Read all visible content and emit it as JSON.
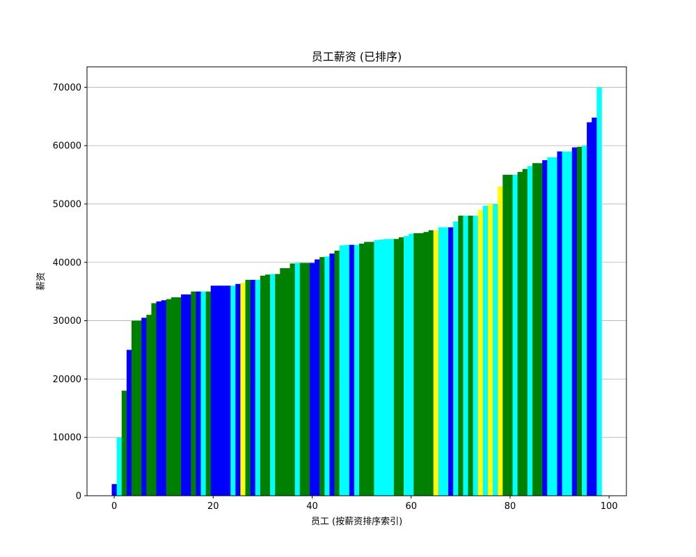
{
  "chart_data": {
    "type": "bar",
    "title": "员工薪资 (已排序)",
    "xlabel": "员工 (按薪资排序索引)",
    "ylabel": "薪资",
    "xlim": [
      -5.5,
      103.5
    ],
    "ylim": [
      0,
      73500
    ],
    "x_ticks": [
      0,
      20,
      40,
      60,
      80,
      100
    ],
    "y_ticks": [
      0,
      10000,
      20000,
      30000,
      40000,
      50000,
      60000,
      70000
    ],
    "grid": "y",
    "colors": {
      "blue": "#0000ff",
      "green": "#008000",
      "cyan": "#00ffff",
      "yellow": "#ffff00"
    },
    "series": [
      {
        "values": [
          2000,
          10000,
          18000,
          25000,
          30000,
          30000,
          30500,
          31000,
          33000,
          33300,
          33500,
          33700,
          34000,
          34000,
          34500,
          34500,
          35000,
          35000,
          35000,
          35000,
          36000,
          36000,
          36000,
          36000,
          36000,
          36300,
          36500,
          37000,
          37000,
          37000,
          37700,
          37900,
          38000,
          38000,
          39000,
          39000,
          39800,
          39900,
          39900,
          39900,
          39900,
          40500,
          40900,
          41000,
          41500,
          42000,
          42900,
          43000,
          43000,
          43000,
          43200,
          43500,
          43500,
          43800,
          43900,
          44000,
          44000,
          44000,
          44300,
          44500,
          44900,
          45000,
          45000,
          45200,
          45500,
          45500,
          46000,
          46000,
          46000,
          47000,
          48000,
          48000,
          48000,
          48000,
          49000,
          49700,
          50000,
          50000,
          53000,
          55000,
          55000,
          55000,
          55500,
          56000,
          56500,
          57000,
          57000,
          57500,
          58000,
          58000,
          59000,
          59000,
          59000,
          59700,
          59800,
          60000,
          64000,
          64800,
          70000
        ],
        "colors": [
          "blue",
          "cyan",
          "green",
          "blue",
          "green",
          "green",
          "blue",
          "green",
          "green",
          "blue",
          "blue",
          "green",
          "green",
          "green",
          "blue",
          "blue",
          "green",
          "blue",
          "cyan",
          "green",
          "blue",
          "blue",
          "blue",
          "blue",
          "cyan",
          "blue",
          "yellow",
          "green",
          "blue",
          "cyan",
          "green",
          "green",
          "cyan",
          "green",
          "green",
          "green",
          "green",
          "cyan",
          "green",
          "green",
          "blue",
          "blue",
          "green",
          "cyan",
          "blue",
          "green",
          "cyan",
          "cyan",
          "blue",
          "cyan",
          "green",
          "green",
          "green",
          "cyan",
          "cyan",
          "cyan",
          "cyan",
          "green",
          "green",
          "cyan",
          "cyan",
          "green",
          "green",
          "green",
          "green",
          "yellow",
          "cyan",
          "cyan",
          "blue",
          "cyan",
          "green",
          "cyan",
          "green",
          "cyan",
          "yellow",
          "cyan",
          "yellow",
          "cyan",
          "yellow",
          "green",
          "green",
          "cyan",
          "green",
          "green",
          "cyan",
          "green",
          "green",
          "blue",
          "cyan",
          "cyan",
          "blue",
          "cyan",
          "cyan",
          "blue",
          "green",
          "cyan",
          "blue",
          "blue",
          "cyan"
        ]
      }
    ]
  }
}
